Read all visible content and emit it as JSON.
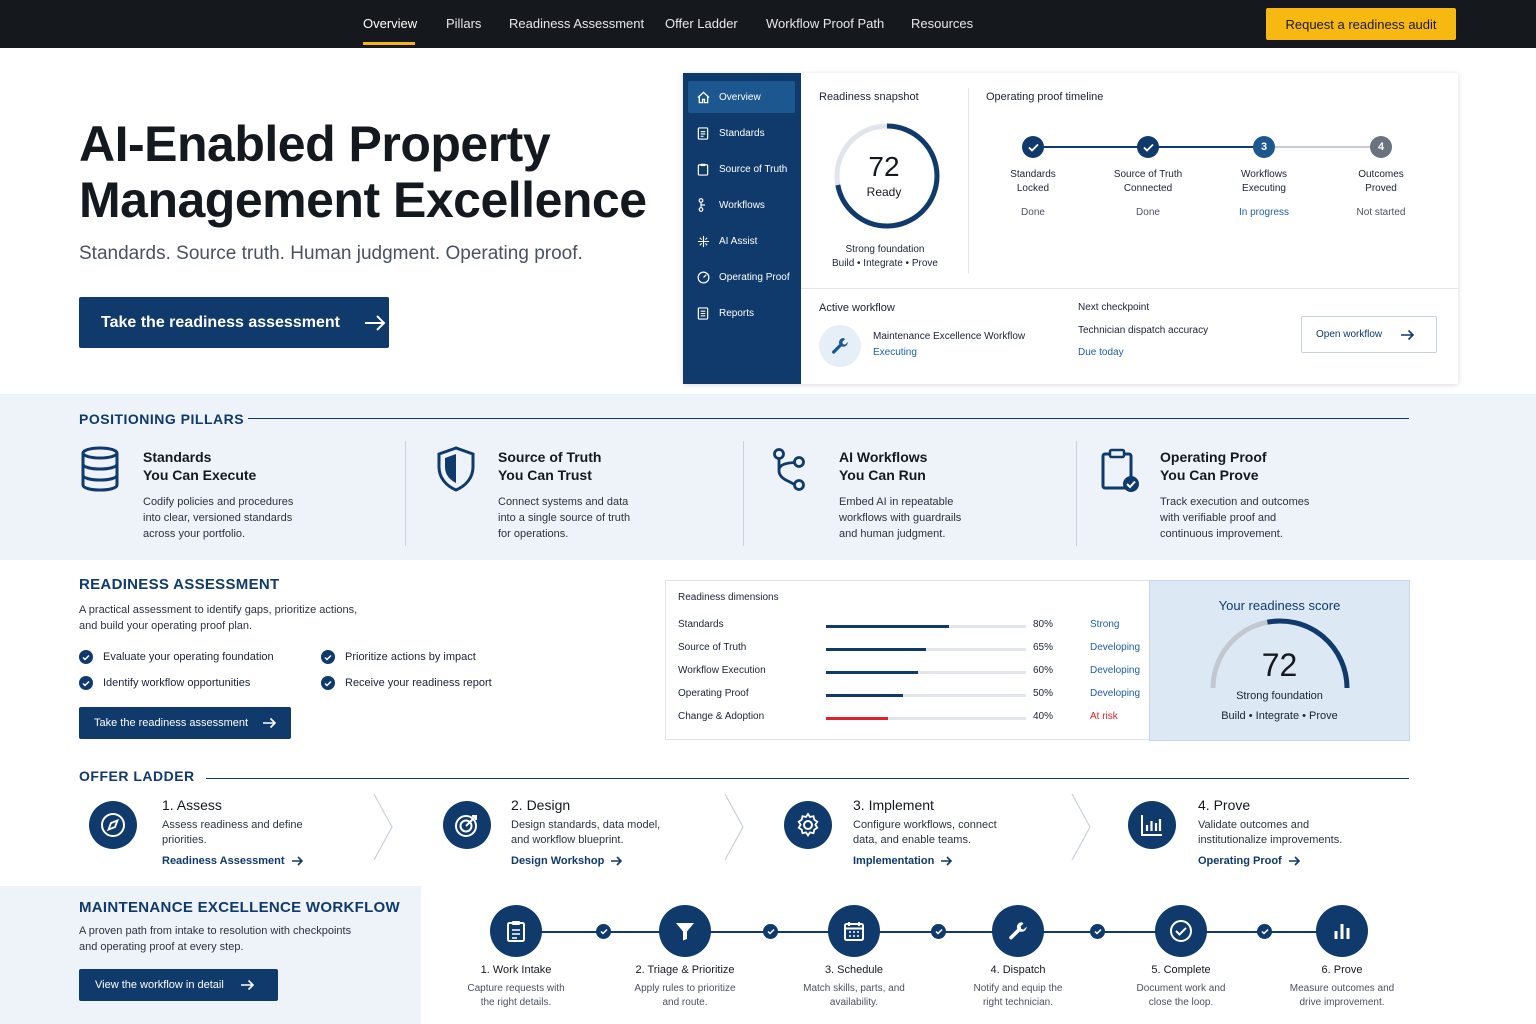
{
  "nav": {
    "links": [
      "Overview",
      "Pillars",
      "Readiness Assessment",
      "Offer Ladder",
      "Workflow Proof Path",
      "Resources"
    ],
    "cta": "Request a readiness audit"
  },
  "hero": {
    "title_line1": "AI-Enabled Property",
    "title_line2": "Management Excellence",
    "subtitle": "Standards. Source truth. Human judgment. Operating proof.",
    "cta": "Take the readiness assessment"
  },
  "dashboard": {
    "sidebar": [
      "Overview",
      "Standards",
      "Source of Truth",
      "Workflows",
      "AI Assist",
      "Operating Proof",
      "Reports"
    ],
    "snapshot": {
      "label": "Readiness snapshot",
      "score": "72",
      "score_label": "Ready",
      "score_fraction": 0.72,
      "note": "Strong foundation",
      "tagline": "Build • Integrate • Prove"
    },
    "timeline": {
      "label": "Operating proof timeline",
      "steps": [
        {
          "marker": "",
          "line1": "Standards",
          "line2": "Locked",
          "status": "Done"
        },
        {
          "marker": "",
          "line1": "Source of Truth",
          "line2": "Connected",
          "status": "Done"
        },
        {
          "marker": "3",
          "line1": "Workflows",
          "line2": "Executing",
          "status": "In progress"
        },
        {
          "marker": "4",
          "line1": "Outcomes",
          "line2": "Proved",
          "status": "Not started"
        }
      ]
    },
    "active": {
      "label": "Active workflow",
      "name": "Maintenance Excellence Workflow",
      "status": "Executing"
    },
    "checkpoint": {
      "label": "Next checkpoint",
      "name": "Technician dispatch accuracy",
      "due": "Due today",
      "button": "Open workflow"
    }
  },
  "pillars": {
    "heading": "POSITIONING PILLARS",
    "items": [
      {
        "title1": "Standards",
        "title2": "You Can Execute",
        "d1": "Codify policies and procedures",
        "d2": "into clear, versioned standards",
        "d3": "across your portfolio."
      },
      {
        "title1": "Source of Truth",
        "title2": "You Can Trust",
        "d1": "Connect systems and data",
        "d2": "into a single source of truth",
        "d3": "for operations."
      },
      {
        "title1": "AI Workflows",
        "title2": "You Can Run",
        "d1": "Embed AI in repeatable",
        "d2": "workflows with guardrails",
        "d3": "and human judgment."
      },
      {
        "title1": "Operating Proof",
        "title2": "You Can Prove",
        "d1": "Track execution and outcomes",
        "d2": "with verifiable proof and",
        "d3": "continuous improvement."
      }
    ]
  },
  "readiness": {
    "heading": "READINESS ASSESSMENT",
    "desc1": "A practical assessment to identify gaps, prioritize actions,",
    "desc2": "and build your operating proof plan.",
    "checks": [
      "Evaluate your operating foundation",
      "Prioritize actions by impact",
      "Identify workflow opportunities",
      "Receive your readiness report"
    ],
    "cta": "Take the readiness assessment",
    "dims_label": "Readiness dimensions",
    "dimensions": [
      {
        "name": "Standards",
        "value": 0.8,
        "pct": "80%",
        "status": "Strong"
      },
      {
        "name": "Source of Truth",
        "value": 0.65,
        "pct": "65%",
        "status": "Developing"
      },
      {
        "name": "Workflow Execution",
        "value": 0.6,
        "pct": "60%",
        "status": "Developing"
      },
      {
        "name": "Operating Proof",
        "value": 0.5,
        "pct": "50%",
        "status": "Developing"
      },
      {
        "name": "Change & Adoption",
        "value": 0.4,
        "pct": "40%",
        "status": "At risk"
      }
    ],
    "score": {
      "label": "Your readiness score",
      "value": "72",
      "fraction": 0.72,
      "note": "Strong foundation",
      "tagline": "Build • Integrate • Prove"
    },
    "colors": {
      "primary": "#0f3a6b",
      "risk": "#e0202a"
    }
  },
  "offer": {
    "heading": "OFFER LADDER",
    "steps": [
      {
        "title": "1. Assess",
        "d1": "Assess readiness and define",
        "d2": "priorities.",
        "link": "Readiness Assessment",
        "icon": "compass-icon"
      },
      {
        "title": "2. Design",
        "d1": "Design standards, data model,",
        "d2": "and workflow blueprint.",
        "link": "Design Workshop",
        "icon": "target-icon"
      },
      {
        "title": "3. Implement",
        "d1": "Configure workflows, connect",
        "d2": "data, and enable teams.",
        "link": "Implementation",
        "icon": "gear-icon"
      },
      {
        "title": "4. Prove",
        "d1": "Validate outcomes and",
        "d2": "institutionalize improvements.",
        "link": "Operating Proof",
        "icon": "bar-chart-icon"
      }
    ]
  },
  "workflow": {
    "heading": "MAINTENANCE EXCELLENCE WORKFLOW",
    "desc1": "A proven path from intake to resolution with checkpoints",
    "desc2": "and operating proof at every step.",
    "cta": "View the workflow in detail",
    "steps": [
      {
        "title": "1. Work Intake",
        "d1": "Capture requests with",
        "d2": "the right details.",
        "icon": "clipboard-icon"
      },
      {
        "title": "2. Triage & Prioritize",
        "d1": "Apply rules to prioritize",
        "d2": "and route.",
        "icon": "filter-icon"
      },
      {
        "title": "3. Schedule",
        "d1": "Match skills, parts, and",
        "d2": "availability.",
        "icon": "calendar-icon"
      },
      {
        "title": "4. Dispatch",
        "d1": "Notify and equip the",
        "d2": "right technician.",
        "icon": "wrench-icon"
      },
      {
        "title": "5. Complete",
        "d1": "Document work and",
        "d2": "close the loop.",
        "icon": "check-circle-icon"
      },
      {
        "title": "6. Prove",
        "d1": "Measure outcomes and",
        "d2": "drive improvement.",
        "icon": "bar-chart-icon"
      }
    ]
  }
}
